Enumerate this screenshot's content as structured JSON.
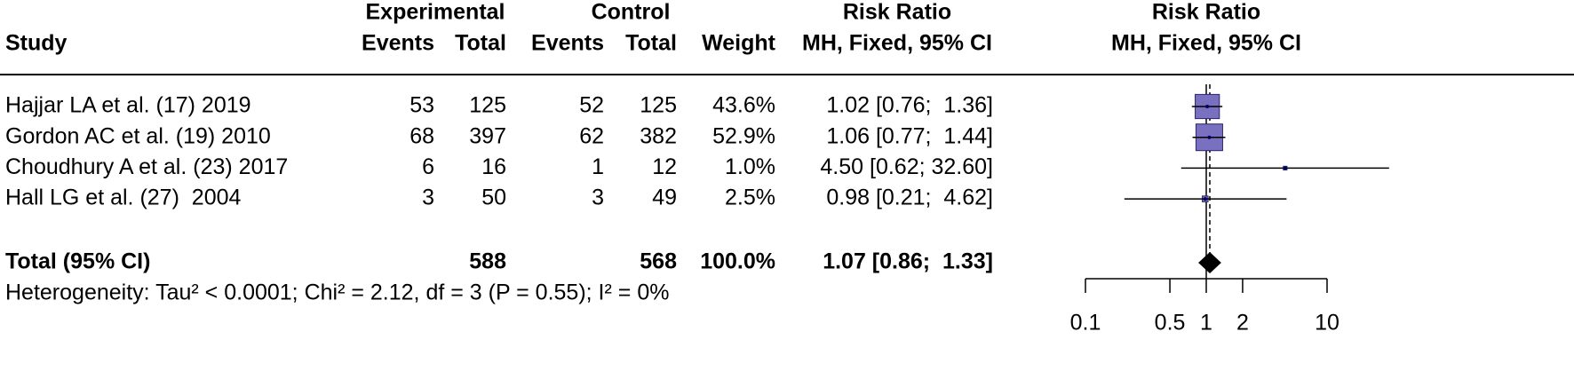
{
  "chart_data": {
    "type": "forest",
    "headers": {
      "study": "Study",
      "experimental": "Experimental",
      "control": "Control",
      "events": "Events",
      "total": "Total",
      "weight": "Weight",
      "effect": [
        "Risk Ratio",
        "MH, Fixed, 95% CI"
      ]
    },
    "plot_title": [
      "Risk Ratio",
      "MH, Fixed, 95% CI"
    ],
    "categories": [
      "Hajjar LA et al. (17) 2019",
      "Gordon AC et al. (19) 2010",
      "Choudhury A et al. (23) 2017",
      "Hall LG et al. (27)  2004"
    ],
    "exp_events": [
      53,
      68,
      6,
      3
    ],
    "exp_total": [
      125,
      397,
      16,
      50
    ],
    "ctrl_events": [
      52,
      62,
      1,
      3
    ],
    "ctrl_total": [
      125,
      382,
      12,
      49
    ],
    "weights": [
      43.6,
      52.9,
      1.0,
      2.5
    ],
    "weight_labels": [
      "43.6%",
      "52.9%",
      "1.0%",
      "2.5%"
    ],
    "values": [
      1.02,
      1.06,
      4.5,
      0.98
    ],
    "ci_lower": [
      0.76,
      0.77,
      0.62,
      0.21
    ],
    "ci_upper": [
      1.36,
      1.44,
      32.6,
      4.62
    ],
    "value_labels": [
      "1.02 [0.76;  1.36]",
      "1.06 [0.77;  1.44]",
      "4.50 [0.62; 32.60]",
      "0.98 [0.21;  4.62]"
    ],
    "total": {
      "label": "Total (95% CI)",
      "exp_total": 588,
      "ctrl_total": 568,
      "weight": 100.0,
      "weight_label": "100.0%",
      "value": 1.07,
      "ci_lower": 0.86,
      "ci_upper": 1.33,
      "value_label": "1.07 [0.86;  1.33]"
    },
    "heterogeneity": "Heterogeneity: Tau² < 0.0001; Chi² = 2.12, df = 3 (P = 0.55); I² = 0%",
    "xlim": [
      0.1,
      10
    ],
    "xticks": [
      0.1,
      0.5,
      1,
      2,
      10
    ],
    "log_scale": true,
    "square_color": "#7a70c0",
    "diamond_color": "#000000"
  }
}
